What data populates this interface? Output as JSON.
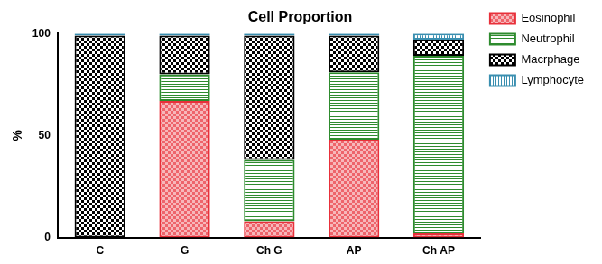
{
  "chart_data": {
    "type": "bar",
    "title": "Cell Proportion",
    "y_label": "%",
    "categories": [
      "C",
      "G",
      "Ch G",
      "AP",
      "Ch AP"
    ],
    "series": [
      {
        "name": "Eosinophil",
        "color": "#e8303a",
        "values": [
          0,
          67,
          8,
          48,
          2
        ]
      },
      {
        "name": "Neutrophil",
        "color": "#2e8b2e",
        "values": [
          0,
          13,
          30,
          33,
          87
        ]
      },
      {
        "name": "Macrphage",
        "color": "#000000",
        "values": [
          99,
          19,
          61,
          18,
          8
        ]
      },
      {
        "name": "Lymphocyte",
        "color": "#3a8fb0",
        "values": [
          1,
          1,
          1,
          1,
          3
        ]
      }
    ],
    "ylim": [
      0,
      100
    ],
    "yticks": [
      0,
      50,
      100
    ],
    "stacked": true,
    "grid": false,
    "legend": "right"
  }
}
